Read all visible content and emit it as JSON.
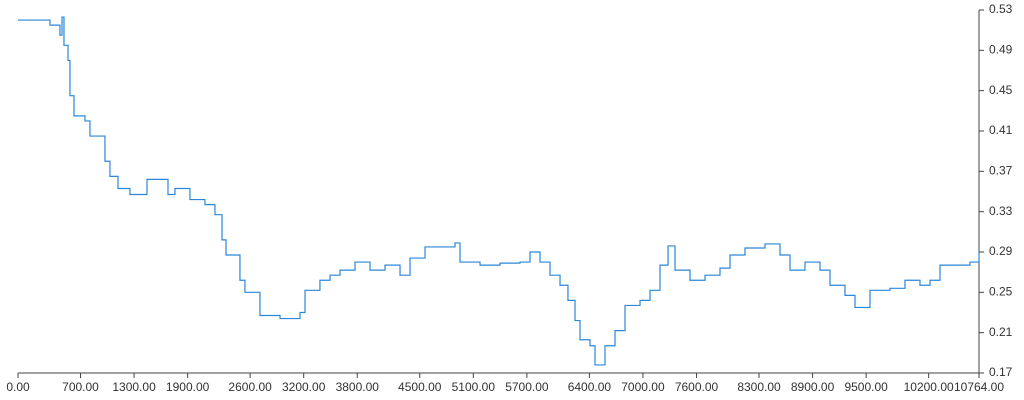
{
  "chart_data": {
    "type": "line",
    "step": true,
    "y_axis_side": "right",
    "grid": false,
    "x": [
      0,
      358,
      470,
      493,
      515,
      560,
      582,
      627,
      750,
      806,
      974,
      1030,
      1120,
      1254,
      1445,
      1680,
      1758,
      1926,
      2094,
      2206,
      2285,
      2330,
      2486,
      2542,
      2710,
      2935,
      3159,
      3215,
      3382,
      3495,
      3607,
      3775,
      3943,
      4111,
      4279,
      4391,
      4559,
      4895,
      4951,
      5175,
      5399,
      5623,
      5735,
      5847,
      5959,
      6071,
      6160,
      6239,
      6295,
      6407,
      6463,
      6575,
      6687,
      6799,
      6967,
      7079,
      7191,
      7281,
      7359,
      7527,
      7695,
      7863,
      7975,
      8143,
      8367,
      8535,
      8647,
      8815,
      8983,
      9095,
      9263,
      9375,
      9543,
      9767,
      9935,
      10103,
      10215,
      10327,
      10495,
      10663,
      10764
    ],
    "series": [
      {
        "color": "#2b87d8",
        "values": [
          0.52,
          0.515,
          0.505,
          0.523,
          0.495,
          0.48,
          0.445,
          0.425,
          0.42,
          0.405,
          0.38,
          0.365,
          0.353,
          0.347,
          0.362,
          0.347,
          0.353,
          0.342,
          0.337,
          0.327,
          0.302,
          0.287,
          0.262,
          0.25,
          0.227,
          0.224,
          0.23,
          0.252,
          0.262,
          0.267,
          0.272,
          0.28,
          0.272,
          0.277,
          0.267,
          0.284,
          0.295,
          0.299,
          0.28,
          0.277,
          0.279,
          0.28,
          0.29,
          0.28,
          0.267,
          0.257,
          0.242,
          0.222,
          0.203,
          0.197,
          0.178,
          0.197,
          0.212,
          0.237,
          0.242,
          0.252,
          0.277,
          0.296,
          0.272,
          0.262,
          0.267,
          0.274,
          0.287,
          0.294,
          0.298,
          0.287,
          0.272,
          0.28,
          0.272,
          0.257,
          0.247,
          0.235,
          0.252,
          0.254,
          0.262,
          0.257,
          0.262,
          0.277,
          0.277,
          0.28,
          0.29
        ]
      }
    ],
    "xlim": [
      0,
      10764
    ],
    "xticks": [
      {
        "value": 0,
        "label": "0.00"
      },
      {
        "value": 700,
        "label": "700.00"
      },
      {
        "value": 1300,
        "label": "1300.00"
      },
      {
        "value": 1900,
        "label": "1900.00"
      },
      {
        "value": 2600,
        "label": "2600.00"
      },
      {
        "value": 3200,
        "label": "3200.00"
      },
      {
        "value": 3800,
        "label": "3800.00"
      },
      {
        "value": 4500,
        "label": "4500.00"
      },
      {
        "value": 5100,
        "label": "5100.00"
      },
      {
        "value": 5700,
        "label": "5700.00"
      },
      {
        "value": 6400,
        "label": "6400.00"
      },
      {
        "value": 7000,
        "label": "7000.00"
      },
      {
        "value": 7600,
        "label": "7600.00"
      },
      {
        "value": 8300,
        "label": "8300.00"
      },
      {
        "value": 8900,
        "label": "8900.00"
      },
      {
        "value": 9500,
        "label": "9500.00"
      },
      {
        "value": 10200,
        "label": "10200.00"
      },
      {
        "value": 10764,
        "label": "10764.00"
      }
    ],
    "ylim": [
      0.17,
      0.53
    ],
    "yticks": [
      0.17,
      0.21,
      0.25,
      0.29,
      0.33,
      0.37,
      0.41,
      0.45,
      0.49,
      0.53
    ]
  }
}
